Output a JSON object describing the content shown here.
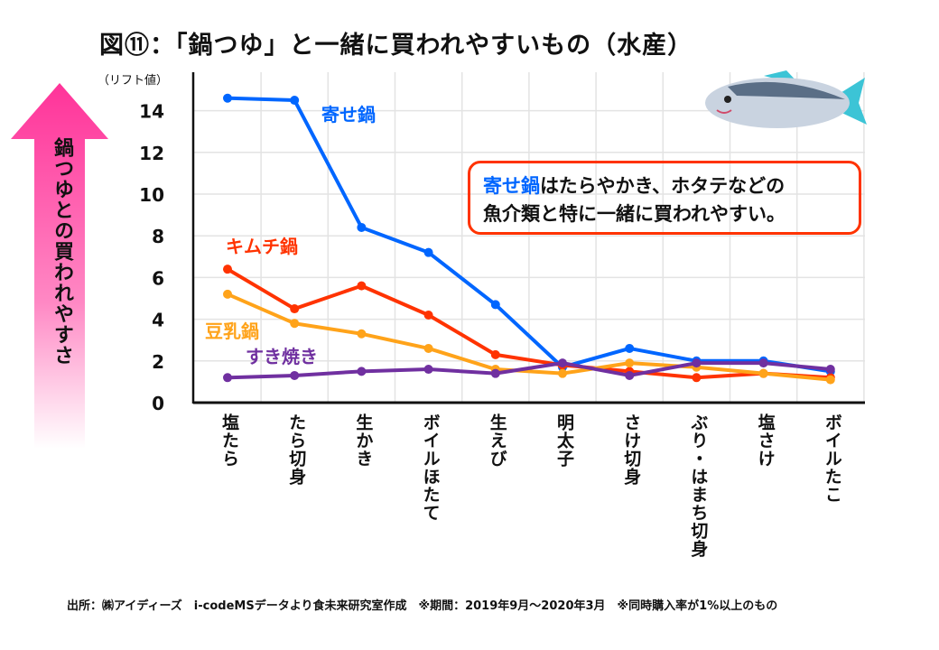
{
  "title": "図⑪：「鍋つゆ」と一緒に買われやすいもの（水産）",
  "unit_label": "（リフト値）",
  "arrow_label": "鍋つゆとの買われやすさ",
  "note": {
    "highlight": "寄せ鍋",
    "line1_rest": "はたらやかき、ホタテなどの",
    "line2": "魚介類と特に一緒に買われやすい。"
  },
  "source": "出所：㈱アイディーズ　i-codeMSデータより食未来研究室作成　※期間：2019年9月～2020年3月　※同時購入率が1%以上のもの",
  "chart_data": {
    "type": "line",
    "title": "図⑪：「鍋つゆ」と一緒に買われやすいもの（水産）",
    "ylabel": "（リフト値）",
    "ylim": [
      0,
      15
    ],
    "yticks": [
      0,
      2,
      4,
      6,
      8,
      10,
      12,
      14
    ],
    "grid": true,
    "categories": [
      "塩たら",
      "たら切身",
      "生かき",
      "ボイルほたて",
      "生えび",
      "明太子",
      "さけ切身",
      "ぶり・はまち切身",
      "塩さけ",
      "ボイルたこ"
    ],
    "series": [
      {
        "name": "寄せ鍋",
        "color": "#0066ff",
        "values": [
          14.6,
          14.5,
          8.4,
          7.2,
          4.7,
          1.7,
          2.6,
          2.0,
          2.0,
          1.5
        ]
      },
      {
        "name": "キムチ鍋",
        "color": "#ff3300",
        "values": [
          6.4,
          4.5,
          5.6,
          4.2,
          2.3,
          1.8,
          1.5,
          1.2,
          1.4,
          1.2
        ]
      },
      {
        "name": "豆乳鍋",
        "color": "#ffa31a",
        "values": [
          5.2,
          3.8,
          3.3,
          2.6,
          1.6,
          1.4,
          1.9,
          1.7,
          1.4,
          1.1
        ]
      },
      {
        "name": "すき焼き",
        "color": "#7030a0",
        "values": [
          1.2,
          1.3,
          1.5,
          1.6,
          1.4,
          1.9,
          1.3,
          1.9,
          1.9,
          1.6
        ]
      }
    ]
  }
}
